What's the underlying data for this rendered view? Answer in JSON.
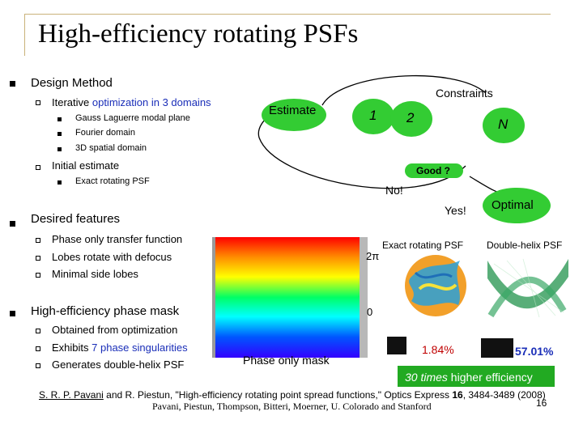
{
  "slide": {
    "title": "High-efficiency rotating PSFs",
    "page_number": "16"
  },
  "outline": {
    "design_method": "Design Method",
    "iterative_prefix": "Iterative ",
    "iterative_highlight": "optimization in 3 domains",
    "domains": [
      "Gauss Laguerre modal plane",
      "Fourier domain",
      "3D spatial domain"
    ],
    "initial_estimate": "Initial estimate",
    "initial_items": [
      "Exact rotating PSF"
    ],
    "desired_features": "Desired features",
    "features": [
      "Phase only transfer function",
      "Lobes rotate with defocus",
      "Minimal side lobes"
    ],
    "phase_mask": "High-efficiency phase mask",
    "mask_items": [
      {
        "prefix": "Obtained from optimization",
        "highlight": "",
        "suffix": ""
      },
      {
        "prefix": "Exhibits ",
        "highlight": "7 phase singularities",
        "suffix": ""
      },
      {
        "prefix": "Generates double-helix PSF",
        "highlight": "",
        "suffix": ""
      }
    ]
  },
  "diagram": {
    "estimate": "Estimate",
    "constraints": "Constraints",
    "steps": [
      "1",
      "2",
      "N"
    ],
    "good": "Good ?",
    "no": "No!",
    "yes": "Yes!",
    "optimal": "Optimal"
  },
  "figures": {
    "mask_top": "2π",
    "mask_bottom": "0",
    "mask_caption": "Phase only mask",
    "exact_label": "Exact rotating PSF",
    "helix_label": "Double-helix PSF",
    "exact_eff": "1.84%",
    "helix_eff": "57.01%",
    "efficiency_highlight": "30 times",
    "efficiency_rest": " higher efficiency"
  },
  "citation": {
    "authors": "S. R. P. Pavani",
    "rest": " and R. Piestun, \"High-efficiency rotating point spread functions,\" Optics Express ",
    "volume": "16",
    "pages": ", 3484-3489 (2008)",
    "credits": "Pavani, Piestun, Thompson, Bitteri, Moerner, U. Colorado and Stanford"
  },
  "colors": {
    "highlight_blue": "#1a2eb8",
    "box_green": "#33cc33",
    "rule_gold": "#c9b27a"
  }
}
